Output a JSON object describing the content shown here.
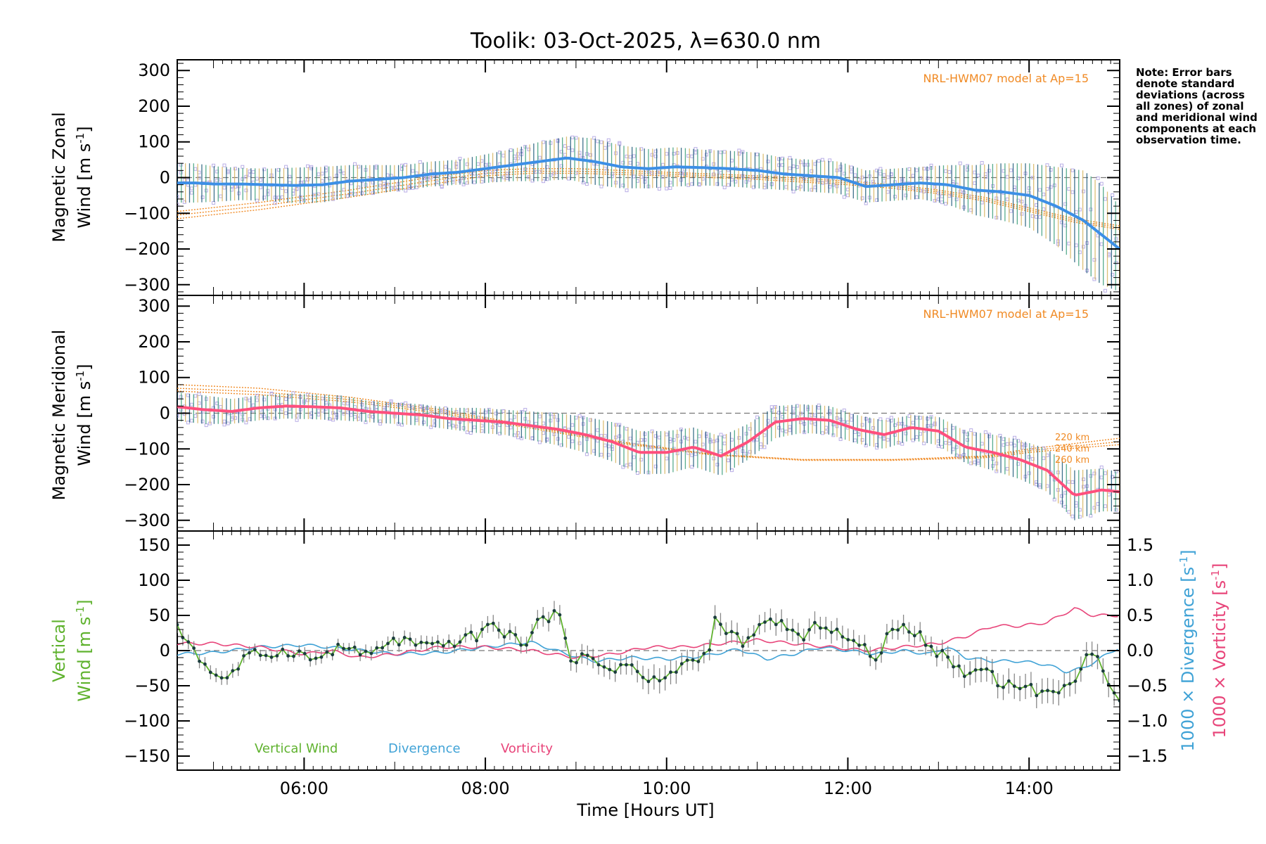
{
  "figure": {
    "title": "Toolik: 03-Oct-2025, λ=630.0 nm",
    "xlabel": "Time [Hours UT]",
    "note": "Note: Error bars denote standard deviations (across all zones) of zonal and meridional wind components at each observation time.",
    "colors": {
      "zonal": "#3c8fe6",
      "meridional": "#ff4f7d",
      "vertical": "#5fb22e",
      "divergence": "#3fa2d6",
      "vorticity": "#e8457a",
      "model": "#f08a24",
      "scatter": "#b9aee6",
      "errorbar": "#1d5a78"
    }
  },
  "chart_data": [
    {
      "type": "line",
      "name": "zonal",
      "ylabel_line1": "Magnetic Zonal",
      "ylabel_line2": "Wind [m s",
      "ylabel_sup": "-1",
      "ylabel_close": "]",
      "model_label": "NRL-HWM07 model at Ap=15",
      "xlim": [
        4.6,
        15.0
      ],
      "ylim": [
        -330,
        330
      ],
      "yticks": [
        300,
        200,
        100,
        0,
        -100,
        -200,
        -300
      ],
      "ytick_labels": [
        "300",
        "200",
        "100",
        "0",
        "−100",
        "−200",
        "−300"
      ],
      "series": [
        {
          "name": "Zonal wind (mean)",
          "x": [
            4.6,
            4.8,
            5.0,
            5.3,
            5.6,
            5.9,
            6.2,
            6.5,
            6.8,
            7.1,
            7.4,
            7.7,
            8.0,
            8.3,
            8.6,
            8.9,
            9.2,
            9.5,
            9.8,
            10.1,
            10.4,
            10.7,
            11.0,
            11.3,
            11.6,
            11.9,
            12.2,
            12.5,
            12.8,
            13.1,
            13.4,
            13.7,
            14.0,
            14.3,
            14.6,
            14.8,
            15.0
          ],
          "y": [
            -15,
            -15,
            -18,
            -18,
            -20,
            -22,
            -20,
            -10,
            -5,
            0,
            10,
            15,
            25,
            35,
            45,
            55,
            45,
            30,
            25,
            30,
            28,
            25,
            20,
            10,
            5,
            0,
            -25,
            -20,
            -15,
            -20,
            -35,
            -40,
            -50,
            -80,
            -120,
            -160,
            -200
          ],
          "sigma": [
            55,
            55,
            50,
            45,
            45,
            50,
            50,
            45,
            40,
            35,
            35,
            35,
            40,
            45,
            55,
            60,
            65,
            60,
            55,
            55,
            50,
            50,
            50,
            45,
            45,
            45,
            45,
            45,
            45,
            55,
            70,
            80,
            90,
            110,
            140,
            140,
            120
          ]
        },
        {
          "name": "HWM 220 km",
          "x": [
            4.6,
            5.5,
            6.5,
            7.5,
            8.0,
            8.5,
            9.0,
            10.0,
            11.0,
            12.0,
            12.5,
            13.0,
            13.5,
            14.0,
            14.5,
            15.0
          ],
          "y": [
            -115,
            -90,
            -55,
            -15,
            5,
            12,
            12,
            5,
            -5,
            -20,
            -30,
            -45,
            -65,
            -95,
            -125,
            -145
          ]
        },
        {
          "name": "HWM 240 km",
          "x": [
            4.6,
            5.5,
            6.5,
            7.5,
            8.0,
            8.5,
            9.0,
            10.0,
            11.0,
            12.0,
            12.5,
            13.0,
            13.5,
            14.0,
            14.5,
            15.0
          ],
          "y": [
            -105,
            -80,
            -45,
            -5,
            12,
            18,
            18,
            10,
            0,
            -15,
            -25,
            -40,
            -60,
            -90,
            -120,
            -140
          ]
        },
        {
          "name": "HWM 260 km",
          "x": [
            4.6,
            5.5,
            6.5,
            7.5,
            8.0,
            8.5,
            9.0,
            10.0,
            11.0,
            12.0,
            12.5,
            13.0,
            13.5,
            14.0,
            14.5,
            15.0
          ],
          "y": [
            -95,
            -70,
            -35,
            5,
            20,
            25,
            25,
            15,
            5,
            -10,
            -20,
            -35,
            -55,
            -85,
            -115,
            -135
          ]
        }
      ]
    },
    {
      "type": "line",
      "name": "meridional",
      "ylabel_line1": "Magnetic Meridional",
      "ylabel_line2": "Wind [m s",
      "ylabel_sup": "-1",
      "ylabel_close": "]",
      "model_label": "NRL-HWM07 model at Ap=15",
      "altitude_labels": [
        "220 km",
        "240 km",
        "260 km"
      ],
      "xlim": [
        4.6,
        15.0
      ],
      "ylim": [
        -330,
        330
      ],
      "yticks": [
        300,
        200,
        100,
        0,
        -100,
        -200,
        -300
      ],
      "ytick_labels": [
        "300",
        "200",
        "100",
        "0",
        "−100",
        "−200",
        "−300"
      ],
      "series": [
        {
          "name": "Meridional wind (mean)",
          "x": [
            4.6,
            4.9,
            5.2,
            5.5,
            5.8,
            6.1,
            6.4,
            6.7,
            7.0,
            7.3,
            7.6,
            7.9,
            8.2,
            8.5,
            8.8,
            9.1,
            9.4,
            9.7,
            10.0,
            10.3,
            10.6,
            10.9,
            11.2,
            11.5,
            11.8,
            12.1,
            12.4,
            12.7,
            13.0,
            13.3,
            13.6,
            13.9,
            14.2,
            14.5,
            14.8,
            15.0
          ],
          "y": [
            18,
            10,
            5,
            15,
            20,
            18,
            15,
            5,
            0,
            -5,
            -15,
            -20,
            -25,
            -35,
            -45,
            -60,
            -80,
            -110,
            -110,
            -95,
            -120,
            -80,
            -25,
            -15,
            -20,
            -45,
            -60,
            -40,
            -50,
            -95,
            -110,
            -130,
            -160,
            -230,
            -215,
            -220
          ],
          "sigma": [
            40,
            40,
            35,
            35,
            35,
            35,
            35,
            30,
            30,
            30,
            30,
            35,
            35,
            40,
            45,
            50,
            55,
            60,
            60,
            55,
            55,
            50,
            45,
            40,
            40,
            40,
            40,
            35,
            40,
            45,
            50,
            55,
            60,
            70,
            60,
            55
          ]
        },
        {
          "name": "HWM 220 km",
          "x": [
            4.6,
            5.5,
            6.5,
            7.5,
            8.5,
            9.5,
            10.5,
            11.5,
            12.5,
            13.5,
            14.0,
            14.5,
            15.0
          ],
          "y": [
            80,
            70,
            45,
            10,
            -35,
            -80,
            -115,
            -130,
            -130,
            -120,
            -100,
            -85,
            -70
          ]
        },
        {
          "name": "HWM 240 km",
          "x": [
            4.6,
            5.5,
            6.5,
            7.5,
            8.5,
            9.5,
            10.5,
            11.5,
            12.5,
            13.5,
            14.0,
            14.5,
            15.0
          ],
          "y": [
            70,
            60,
            38,
            5,
            -38,
            -82,
            -115,
            -130,
            -130,
            -122,
            -105,
            -92,
            -80
          ]
        },
        {
          "name": "HWM 260 km",
          "x": [
            4.6,
            5.5,
            6.5,
            7.5,
            8.5,
            9.5,
            10.5,
            11.5,
            12.5,
            13.5,
            14.0,
            14.5,
            15.0
          ],
          "y": [
            62,
            52,
            32,
            0,
            -42,
            -85,
            -117,
            -132,
            -132,
            -125,
            -110,
            -98,
            -88
          ]
        }
      ]
    },
    {
      "type": "line",
      "name": "vertical",
      "ylabel_line1": "Vertical",
      "ylabel_line2": "Wind [m s",
      "ylabel_sup": "-1",
      "ylabel_close": "]",
      "right_labels": {
        "divergence": "1000 × Divergence [s",
        "vorticity": "1000 × Vorticity [s",
        "sup": "-1",
        "close": "]"
      },
      "legend": [
        "Vertical Wind",
        "Divergence",
        "Vorticity"
      ],
      "xlim": [
        4.6,
        15.0
      ],
      "ylim": [
        -170,
        170
      ],
      "yticks": [
        150,
        100,
        50,
        0,
        -50,
        -100,
        -150
      ],
      "ytick_labels": [
        "150",
        "100",
        "50",
        "0",
        "−50",
        "−100",
        "−150"
      ],
      "y2lim": [
        -1.7,
        1.7
      ],
      "y2ticks": [
        1.5,
        1.0,
        0.5,
        0.0,
        -0.5,
        -1.0,
        -1.5
      ],
      "y2tick_labels": [
        "1.5",
        "1.0",
        "0.5",
        "0.0",
        "−0.5",
        "−1.0",
        "−1.5"
      ],
      "xticks": [
        6,
        8,
        10,
        12,
        14
      ],
      "xtick_labels": [
        "06:00",
        "08:00",
        "10:00",
        "12:00",
        "14:00"
      ],
      "series": [
        {
          "name": "Vertical Wind",
          "axis": "left",
          "x": [
            4.6,
            4.75,
            4.9,
            5.05,
            5.2,
            5.35,
            5.5,
            5.7,
            5.9,
            6.1,
            6.3,
            6.5,
            6.7,
            6.9,
            7.1,
            7.3,
            7.5,
            7.7,
            7.9,
            8.0,
            8.1,
            8.25,
            8.4,
            8.5,
            8.6,
            8.75,
            8.85,
            8.95,
            9.1,
            9.25,
            9.4,
            9.6,
            9.8,
            10.0,
            10.15,
            10.3,
            10.45,
            10.55,
            10.6,
            10.75,
            10.9,
            11.05,
            11.2,
            11.35,
            11.5,
            11.7,
            11.85,
            12.0,
            12.15,
            12.3,
            12.45,
            12.6,
            12.8,
            12.95,
            13.1,
            13.25,
            13.4,
            13.55,
            13.7,
            13.85,
            14.0,
            14.2,
            14.4,
            14.55,
            14.65,
            14.75,
            14.85,
            15.0
          ],
          "y": [
            30,
            10,
            -20,
            -38,
            -35,
            -10,
            -5,
            -3,
            0,
            -15,
            0,
            5,
            -10,
            10,
            15,
            5,
            5,
            15,
            20,
            40,
            30,
            25,
            10,
            20,
            45,
            50,
            40,
            -10,
            -10,
            -20,
            -25,
            -20,
            -45,
            -40,
            -20,
            -15,
            -5,
            55,
            30,
            20,
            10,
            35,
            45,
            30,
            15,
            40,
            30,
            15,
            5,
            -10,
            20,
            35,
            25,
            0,
            -10,
            -30,
            -30,
            -25,
            -50,
            -45,
            -55,
            -60,
            -55,
            -30,
            0,
            -10,
            -50,
            -75
          ],
          "sigma": [
            12,
            10,
            10,
            10,
            10,
            10,
            8,
            8,
            8,
            10,
            8,
            8,
            10,
            10,
            10,
            10,
            10,
            10,
            12,
            12,
            12,
            12,
            12,
            12,
            14,
            14,
            14,
            14,
            14,
            14,
            14,
            14,
            18,
            18,
            16,
            14,
            14,
            18,
            16,
            16,
            14,
            14,
            16,
            16,
            16,
            16,
            16,
            16,
            14,
            14,
            14,
            14,
            14,
            14,
            16,
            16,
            18,
            18,
            18,
            18,
            18,
            18,
            18,
            18,
            18,
            18,
            18,
            18
          ]
        },
        {
          "name": "Divergence",
          "axis": "right",
          "x": [
            4.6,
            5.0,
            5.5,
            6.0,
            6.5,
            7.0,
            7.5,
            8.0,
            8.5,
            8.9,
            9.2,
            9.6,
            10.0,
            10.4,
            10.8,
            11.1,
            11.4,
            11.7,
            12.0,
            12.3,
            12.6,
            12.9,
            13.1,
            13.3,
            13.6,
            13.9,
            14.2,
            14.4,
            14.6,
            14.8,
            15.0
          ],
          "y": [
            -0.05,
            -0.03,
            0.05,
            0.08,
            0.02,
            -0.05,
            -0.03,
            0.05,
            0.12,
            -0.05,
            -0.15,
            -0.1,
            -0.12,
            -0.08,
            0.02,
            -0.12,
            -0.05,
            0.05,
            0.0,
            -0.05,
            0.0,
            -0.05,
            0.05,
            -0.1,
            -0.15,
            -0.15,
            -0.2,
            -0.3,
            -0.25,
            -0.1,
            0.05
          ]
        },
        {
          "name": "Vorticity",
          "axis": "right",
          "x": [
            4.6,
            5.0,
            5.5,
            6.0,
            6.3,
            6.6,
            7.0,
            7.5,
            8.0,
            8.5,
            9.0,
            9.4,
            9.8,
            10.2,
            10.6,
            11.0,
            11.4,
            11.8,
            12.2,
            12.6,
            13.0,
            13.3,
            13.6,
            13.9,
            14.2,
            14.5,
            14.7,
            15.0
          ],
          "y": [
            0.1,
            0.1,
            0.05,
            -0.05,
            0.0,
            -0.1,
            -0.05,
            0.05,
            0.05,
            0.0,
            -0.1,
            -0.05,
            0.05,
            0.05,
            0.1,
            0.15,
            0.1,
            0.05,
            0.0,
            0.05,
            0.1,
            0.2,
            0.35,
            0.35,
            0.4,
            0.6,
            0.5,
            0.5
          ]
        }
      ]
    }
  ]
}
